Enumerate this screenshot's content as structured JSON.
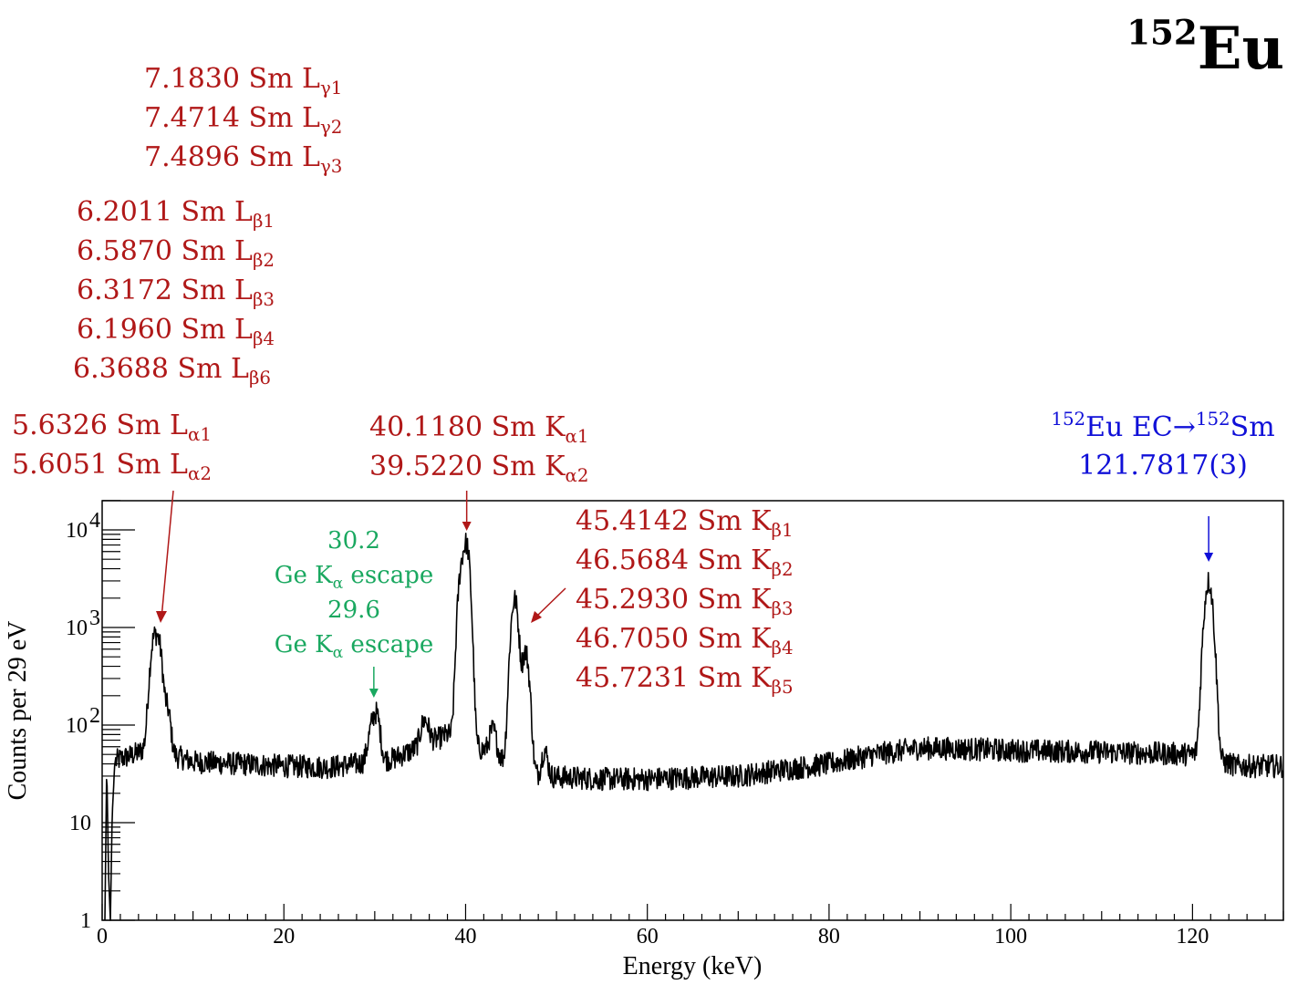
{
  "title": {
    "mass": "152",
    "element": "Eu"
  },
  "annotations": {
    "l_gamma": [
      {
        "value": "7.1830 Sm L",
        "sub": "γ1"
      },
      {
        "value": "7.4714 Sm L",
        "sub": "γ2"
      },
      {
        "value": "7.4896 Sm L",
        "sub": "γ3"
      }
    ],
    "l_beta": [
      {
        "value": "6.2011 Sm L",
        "sub": "β1"
      },
      {
        "value": "6.5870 Sm L",
        "sub": "β2"
      },
      {
        "value": "6.3172 Sm L",
        "sub": "β3"
      },
      {
        "value": "6.1960 Sm L",
        "sub": "β4"
      },
      {
        "value": "6.3688  Sm L",
        "sub": "β6"
      }
    ],
    "l_alpha": [
      {
        "value": "5.6326 Sm L",
        "sub": "α1"
      },
      {
        "value": "5.6051 Sm L",
        "sub": "α2"
      }
    ],
    "k_alpha": [
      {
        "value": "40.1180 Sm K",
        "sub": "α1"
      },
      {
        "value": "39.5220 Sm K",
        "sub": "α2"
      }
    ],
    "k_beta": [
      {
        "value": "45.4142 Sm K",
        "sub": "β1"
      },
      {
        "value": "46.5684 Sm K",
        "sub": "β2"
      },
      {
        "value": "45.2930 Sm K",
        "sub": "β3"
      },
      {
        "value": "46.7050 Sm K",
        "sub": "β4"
      },
      {
        "value": "45.7231 Sm K",
        "sub": "β5"
      }
    ],
    "escape": [
      {
        "energy": "30.2",
        "label": "Ge K",
        "sub": "α",
        "suffix": " escape"
      },
      {
        "energy": "29.6",
        "label": "Ge K",
        "sub": "α",
        "suffix": " escape"
      }
    ],
    "gamma": {
      "sup1": "152",
      "part1": "Eu EC→",
      "sup2": "152",
      "part2": "Sm",
      "energy": "121.7817(3)"
    }
  },
  "colors": {
    "red": "#b01818",
    "green": "#1aa860",
    "blue": "#1010d8",
    "trace": "#000000"
  },
  "chart_data": {
    "type": "line",
    "xlabel": "Energy (keV)",
    "ylabel": "Counts per 29 eV",
    "xlim": [
      0,
      130
    ],
    "ylim": [
      1,
      20000
    ],
    "yscale": "log",
    "xticks": [
      0,
      20,
      40,
      60,
      80,
      100,
      120
    ],
    "yticks": [
      {
        "value": 1,
        "label": "1"
      },
      {
        "value": 10,
        "label": "10"
      },
      {
        "value": 100,
        "label": "10",
        "exp": "2"
      },
      {
        "value": 1000,
        "label": "10",
        "exp": "3"
      },
      {
        "value": 10000,
        "label": "10",
        "exp": "4"
      }
    ],
    "background": [
      [
        0.3,
        1
      ],
      [
        0.5,
        40
      ],
      [
        0.7,
        3
      ],
      [
        0.9,
        1
      ],
      [
        1.1,
        12
      ],
      [
        1.4,
        42
      ],
      [
        2,
        45
      ],
      [
        3,
        48
      ],
      [
        4,
        52
      ],
      [
        5,
        60
      ],
      [
        10,
        42
      ],
      [
        15,
        40
      ],
      [
        20,
        38
      ],
      [
        25,
        37
      ],
      [
        28,
        40
      ],
      [
        32,
        45
      ],
      [
        35,
        60
      ],
      [
        38,
        80
      ],
      [
        42,
        55
      ],
      [
        44,
        45
      ],
      [
        48,
        30
      ],
      [
        55,
        28
      ],
      [
        60,
        28
      ],
      [
        65,
        29
      ],
      [
        70,
        30
      ],
      [
        75,
        35
      ],
      [
        80,
        40
      ],
      [
        85,
        50
      ],
      [
        90,
        58
      ],
      [
        95,
        57
      ],
      [
        100,
        55
      ],
      [
        110,
        53
      ],
      [
        120,
        50
      ],
      [
        125,
        38
      ],
      [
        130,
        38
      ]
    ],
    "peaks": [
      {
        "energy": 5.65,
        "height": 600,
        "sigma": 0.35
      },
      {
        "energy": 6.25,
        "height": 550,
        "sigma": 0.35
      },
      {
        "energy": 7.2,
        "height": 90,
        "sigma": 0.3
      },
      {
        "energy": 29.6,
        "height": 40,
        "sigma": 0.35
      },
      {
        "energy": 30.2,
        "height": 80,
        "sigma": 0.35
      },
      {
        "energy": 35.5,
        "height": 50,
        "sigma": 0.4
      },
      {
        "energy": 39.52,
        "height": 3500,
        "sigma": 0.32
      },
      {
        "energy": 40.12,
        "height": 6500,
        "sigma": 0.32
      },
      {
        "energy": 43.0,
        "height": 40,
        "sigma": 0.35
      },
      {
        "energy": 45.4,
        "height": 1900,
        "sigma": 0.35
      },
      {
        "energy": 46.6,
        "height": 520,
        "sigma": 0.35
      },
      {
        "energy": 48.7,
        "height": 25,
        "sigma": 0.3
      },
      {
        "energy": 121.78,
        "height": 2900,
        "sigma": 0.4
      }
    ],
    "markers": [
      {
        "energy": 121.78,
        "color": "blue"
      },
      {
        "energy": 40.12,
        "color": "red"
      },
      {
        "energy": 29.9,
        "color": "green"
      }
    ]
  }
}
